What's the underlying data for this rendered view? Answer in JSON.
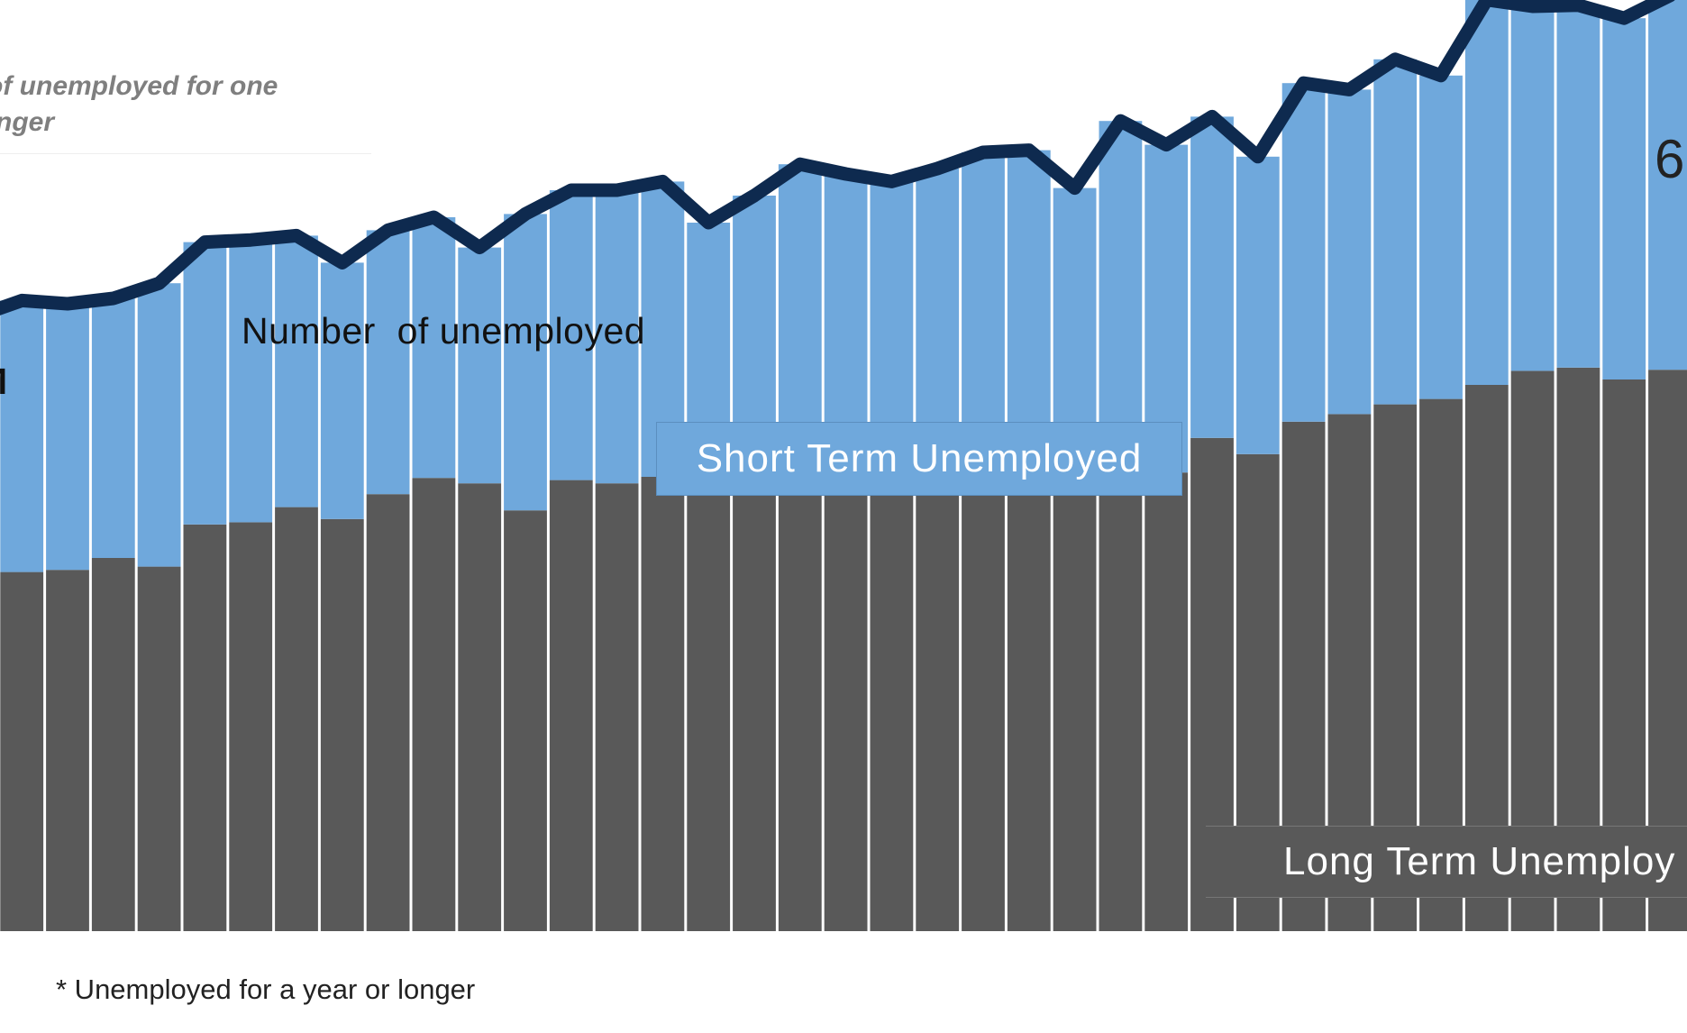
{
  "legend": {
    "text": "ber of unemployed for one\n or longer"
  },
  "labels": {
    "line": "Number  of unemployed",
    "start": "M",
    "end": "6",
    "short_term": "Short Term Unemployed",
    "long_term": "Long Term Unemploy",
    "footnote": "* Unemployed for a year or longer"
  },
  "colors": {
    "short_term": "#6fa8dc",
    "long_term": "#595959",
    "total_line": "#0e2a4f",
    "separator": "#ffffff"
  },
  "chart_data": {
    "type": "bar",
    "stacked": true,
    "ylim": [
      0,
      840
    ],
    "series": [
      {
        "name": "Long Term Unemploy",
        "values": [
          320,
          332,
          334,
          345,
          337,
          376,
          378,
          392,
          381,
          404,
          419,
          414,
          389,
          417,
          414,
          420,
          414,
          409,
          425,
          409,
          409,
          427,
          434,
          435,
          415,
          447,
          424,
          456,
          441,
          471,
          478,
          487,
          492,
          505,
          518,
          521,
          510,
          519
        ]
      },
      {
        "name": "Short Term Unemployed",
        "values": [
          248,
          251,
          246,
          240,
          262,
          261,
          261,
          251,
          237,
          244,
          241,
          218,
          274,
          268,
          271,
          273,
          241,
          271,
          284,
          291,
          284,
          278,
          286,
          287,
          272,
          302,
          303,
          297,
          275,
          313,
          300,
          319,
          299,
          356,
          337,
          335,
          334,
          346
        ]
      }
    ],
    "line": {
      "name": "Number  of unemployed",
      "values": [
        568,
        583,
        580,
        585,
        599,
        637,
        639,
        643,
        618,
        648,
        660,
        632,
        663,
        685,
        685,
        693,
        655,
        680,
        709,
        700,
        693,
        705,
        720,
        722,
        687,
        749,
        727,
        753,
        716,
        784,
        778,
        806,
        791,
        861,
        855,
        856,
        844,
        865
      ]
    }
  }
}
